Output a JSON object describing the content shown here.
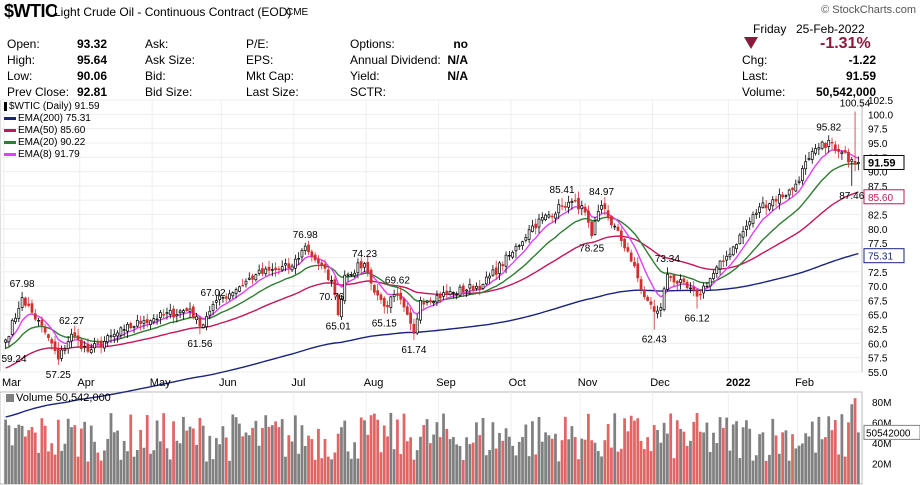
{
  "header": {
    "symbol": "$WTIC",
    "description": "Light Crude Oil - Continuous Contract (EOD)",
    "exchange": "CME",
    "brand": "© StockCharts.com"
  },
  "quote_left": [
    {
      "label": "Open:",
      "value": "93.32"
    },
    {
      "label": "High:",
      "value": "95.64"
    },
    {
      "label": "Low:",
      "value": "90.06"
    },
    {
      "label": "Prev Close:",
      "value": "92.81"
    }
  ],
  "quote_mid": [
    "Ask:",
    "Ask Size:",
    "Bid:",
    "Bid Size:"
  ],
  "quote_mid2": [
    "P/E:",
    "EPS:",
    "Mkt Cap:",
    "Last Size:"
  ],
  "quote_right": [
    {
      "label": "Options:",
      "value": "no"
    },
    {
      "label": "Annual Dividend:",
      "value": "N/A"
    },
    {
      "label": "Yield:",
      "value": "N/A"
    },
    {
      "label": "SCTR:",
      "value": ""
    }
  ],
  "summary": {
    "day": "Friday",
    "date": "25-Feb-2022",
    "change_pct": "-1.31%",
    "chg_label": "Chg:",
    "chg_value": "-1.22",
    "last_label": "Last:",
    "last_value": "91.59",
    "volume_label": "Volume:",
    "volume_value": "50,542,000",
    "down_color": "#8b1a3a"
  },
  "legend": [
    {
      "label": "$WTIC (Daily) 91.59",
      "color": "#000000"
    },
    {
      "label": "EMA(200) 75.31",
      "color": "#1a237e"
    },
    {
      "label": "EMA(50) 85.60",
      "color": "#c2185b"
    },
    {
      "label": "EMA(20) 90.22",
      "color": "#2e7d32"
    },
    {
      "label": "EMA(8) 91.79",
      "color": "#e040fb"
    }
  ],
  "volume_legend": "Volume 50,542,000",
  "chart_data": {
    "type": "candlestick",
    "y_axis": {
      "ticks": [
        "100.0",
        "97.5",
        "95.0",
        "92.5",
        "90.0",
        "87.5",
        "85.0",
        "82.5",
        "80.0",
        "77.5",
        "75.0",
        "72.5",
        "70.0",
        "67.5",
        "65.0",
        "62.5",
        "60.0",
        "57.5",
        "55.0"
      ],
      "top_tick": "102.5",
      "ylim": [
        55,
        102.5
      ]
    },
    "x_axis_months": [
      "Mar",
      "Apr",
      "May",
      "Jun",
      "Jul",
      "Aug",
      "Sep",
      "Oct",
      "Nov",
      "Dec",
      "2022",
      "Feb"
    ],
    "anchors": [
      {
        "date": "2021-03-01",
        "close": 60.6
      },
      {
        "date": "2021-03-05",
        "close": 66.1
      },
      {
        "date": "2021-03-08",
        "close": 67.98
      },
      {
        "date": "2021-03-18",
        "close": 61.0
      },
      {
        "date": "2021-03-23",
        "close": 57.25
      },
      {
        "date": "2021-03-29",
        "close": 61.6
      },
      {
        "date": "2021-04-05",
        "close": 58.6
      },
      {
        "date": "2021-04-20",
        "close": 62.4
      },
      {
        "date": "2021-04-28",
        "close": 64.0
      },
      {
        "date": "2021-05-18",
        "close": 66.0
      },
      {
        "date": "2021-05-21",
        "close": 63.0
      },
      {
        "date": "2021-05-27",
        "close": 66.8
      },
      {
        "date": "2021-06-15",
        "close": 72.0
      },
      {
        "date": "2021-06-30",
        "close": 73.5
      },
      {
        "date": "2021-07-06",
        "close": 76.98
      },
      {
        "date": "2021-07-12",
        "close": 74.0
      },
      {
        "date": "2021-07-16",
        "close": 71.0
      },
      {
        "date": "2021-07-20",
        "close": 65.01
      },
      {
        "date": "2021-07-22",
        "close": 71.9
      },
      {
        "date": "2021-07-30",
        "close": 73.95
      },
      {
        "date": "2021-08-03",
        "close": 70.5
      },
      {
        "date": "2021-08-09",
        "close": 66.5
      },
      {
        "date": "2021-08-13",
        "close": 68.4
      },
      {
        "date": "2021-08-20",
        "close": 61.74
      },
      {
        "date": "2021-08-24",
        "close": 67.5
      },
      {
        "date": "2021-09-07",
        "close": 68.9
      },
      {
        "date": "2021-09-20",
        "close": 70.3
      },
      {
        "date": "2021-10-01",
        "close": 75.9
      },
      {
        "date": "2021-10-11",
        "close": 80.5
      },
      {
        "date": "2021-10-22",
        "close": 84.0
      },
      {
        "date": "2021-10-26",
        "close": 84.65
      },
      {
        "date": "2021-11-01",
        "close": 84.05
      },
      {
        "date": "2021-11-04",
        "close": 78.8
      },
      {
        "date": "2021-11-09",
        "close": 84.1
      },
      {
        "date": "2021-11-19",
        "close": 76.1
      },
      {
        "date": "2021-11-26",
        "close": 68.15
      },
      {
        "date": "2021-12-01",
        "close": 65.57
      },
      {
        "date": "2021-12-03",
        "close": 66.26
      },
      {
        "date": "2021-12-07",
        "close": 72.05
      },
      {
        "date": "2021-12-20",
        "close": 68.23
      },
      {
        "date": "2021-12-31",
        "close": 75.21
      },
      {
        "date": "2022-01-14",
        "close": 83.82
      },
      {
        "date": "2022-01-28",
        "close": 86.82
      },
      {
        "date": "2022-02-04",
        "close": 92.31
      },
      {
        "date": "2022-02-14",
        "close": 95.46
      },
      {
        "date": "2022-02-16",
        "close": 93.66
      },
      {
        "date": "2022-02-23",
        "close": 92.1
      },
      {
        "date": "2022-02-25",
        "close": 91.59
      }
    ],
    "labels": [
      {
        "date": "2021-03-01",
        "value": "59.24",
        "pos": "below",
        "price": 59.0
      },
      {
        "date": "2021-03-08",
        "value": "67.98",
        "pos": "above",
        "price": 68.0
      },
      {
        "date": "2021-03-23",
        "value": "57.25",
        "pos": "below",
        "price": 57.0
      },
      {
        "date": "2021-03-29",
        "value": "62.27",
        "pos": "above",
        "price": 62.3
      },
      {
        "date": "2021-05-21",
        "value": "61.56",
        "pos": "below",
        "price": 61.6
      },
      {
        "date": "2021-05-27",
        "value": "67.02",
        "pos": "above",
        "price": 67.0
      },
      {
        "date": "2021-07-06",
        "value": "76.98",
        "pos": "above",
        "price": 77.0
      },
      {
        "date": "2021-07-16",
        "value": "70.76",
        "pos": "below",
        "price": 70.8
      },
      {
        "date": "2021-07-20",
        "value": "65.01",
        "pos": "below",
        "price": 65.0
      },
      {
        "date": "2021-07-30",
        "value": "74.23",
        "pos": "above",
        "price": 74.2
      },
      {
        "date": "2021-08-13",
        "value": "69.62",
        "pos": "above",
        "price": 69.6
      },
      {
        "date": "2021-08-09",
        "value": "65.15",
        "pos": "below",
        "price": 65.2
      },
      {
        "date": "2021-08-20",
        "value": "61.74",
        "pos": "below",
        "price": 61.7
      },
      {
        "date": "2021-10-22",
        "value": "85.41",
        "pos": "above",
        "price": 85.4
      },
      {
        "date": "2021-11-09",
        "value": "84.97",
        "pos": "above",
        "price": 85.0
      },
      {
        "date": "2021-11-04",
        "value": "78.25",
        "pos": "below",
        "price": 78.3
      },
      {
        "date": "2021-12-01",
        "value": "62.43",
        "pos": "below",
        "price": 62.4
      },
      {
        "date": "2021-12-07",
        "value": "73.34",
        "pos": "above",
        "price": 73.3
      },
      {
        "date": "2021-12-20",
        "value": "66.12",
        "pos": "below",
        "price": 66.1
      },
      {
        "date": "2022-02-14",
        "value": "95.82",
        "pos": "above",
        "price": 95.8
      },
      {
        "date": "2022-02-23",
        "value": "87.46",
        "pos": "below",
        "price": 87.5
      },
      {
        "date": "2022-02-24",
        "value": "100.54",
        "pos": "above",
        "price": 100.5
      }
    ],
    "last_close_tag": {
      "value": "91.59",
      "color": "#000000"
    },
    "ema_tags": [
      {
        "value": "85.60",
        "color": "#c2185b"
      },
      {
        "value": "75.31",
        "color": "#1a237e"
      }
    ],
    "volume_axis": {
      "ticks": [
        "80M",
        "60M",
        "40M",
        "20M"
      ],
      "current_tag": "50542000",
      "ylim": [
        0,
        90
      ]
    },
    "colors": {
      "up": "#000000",
      "down": "#d32f2f",
      "vol_up": "#808080",
      "vol_down": "#e06666"
    }
  }
}
